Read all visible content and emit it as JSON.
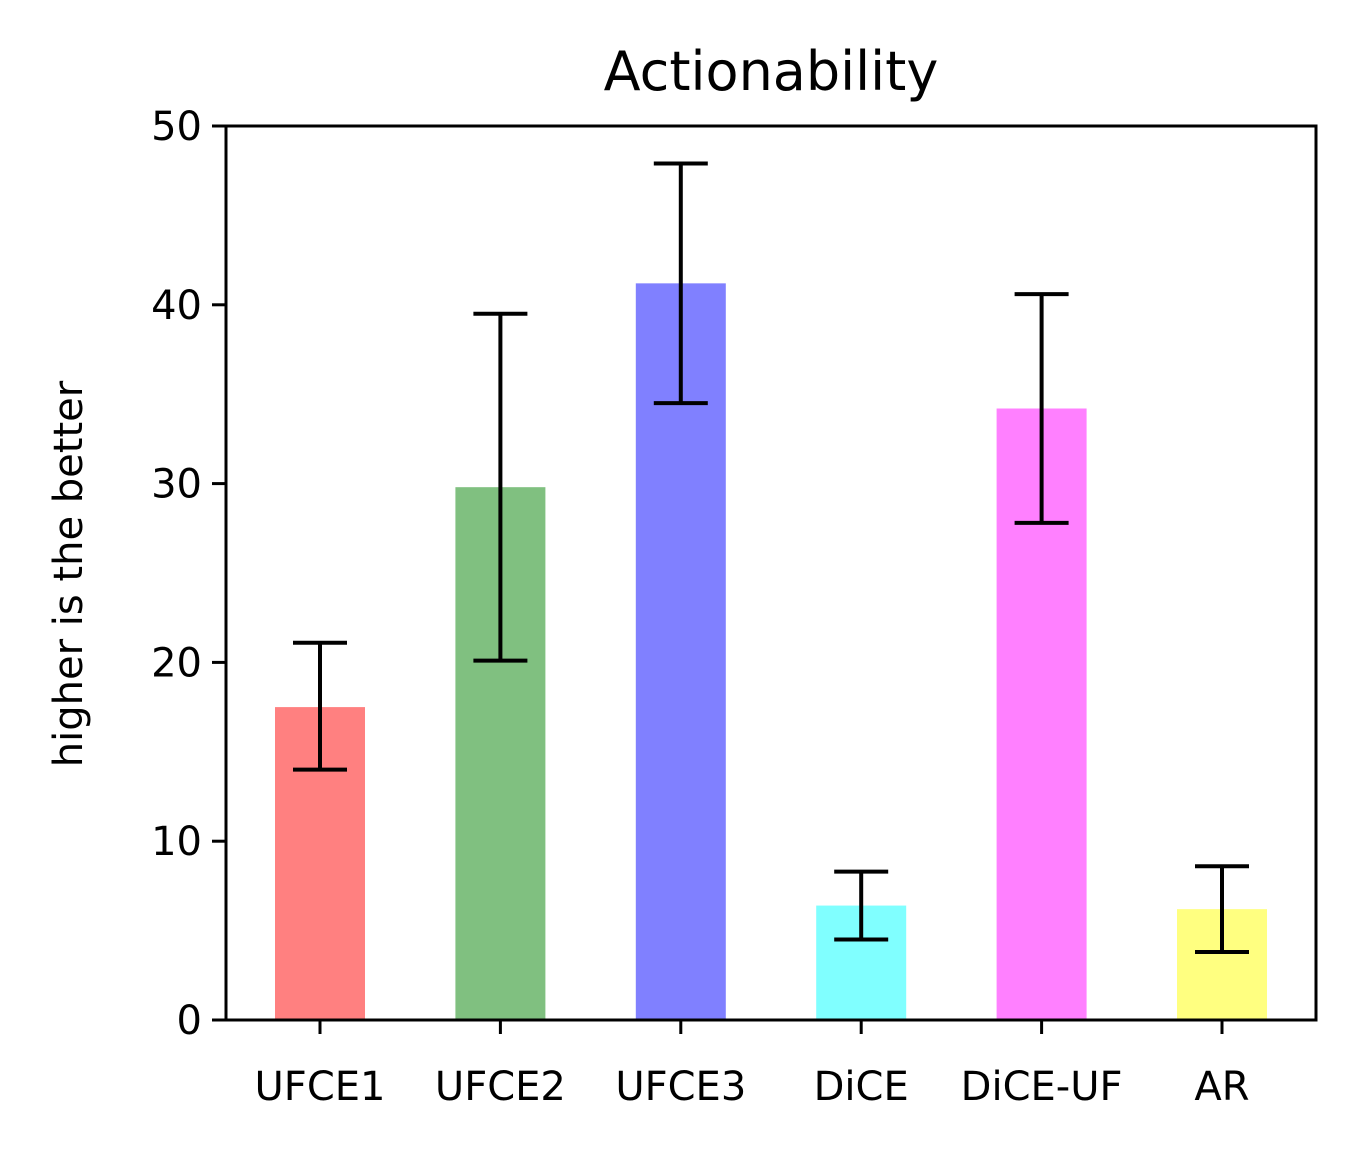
{
  "chart_data": {
    "type": "bar",
    "title": "Actionability",
    "xlabel": "",
    "ylabel": "higher is the better",
    "ylim": [
      0,
      50
    ],
    "yticks": [
      0,
      10,
      20,
      30,
      40,
      50
    ],
    "grid": false,
    "legend": "none",
    "categories": [
      "UFCE1",
      "UFCE2",
      "UFCE3",
      "DiCE",
      "DiCE-UF",
      "AR"
    ],
    "values": [
      17.5,
      29.8,
      41.2,
      6.4,
      34.2,
      6.2
    ],
    "error_low": [
      14.0,
      20.1,
      34.5,
      4.5,
      27.8,
      3.8
    ],
    "error_high": [
      21.1,
      39.5,
      47.9,
      8.3,
      40.6,
      8.6
    ],
    "colors": [
      "#ff8080",
      "#80c080",
      "#8080ff",
      "#80ffff",
      "#ff80ff",
      "#ffff80"
    ]
  }
}
